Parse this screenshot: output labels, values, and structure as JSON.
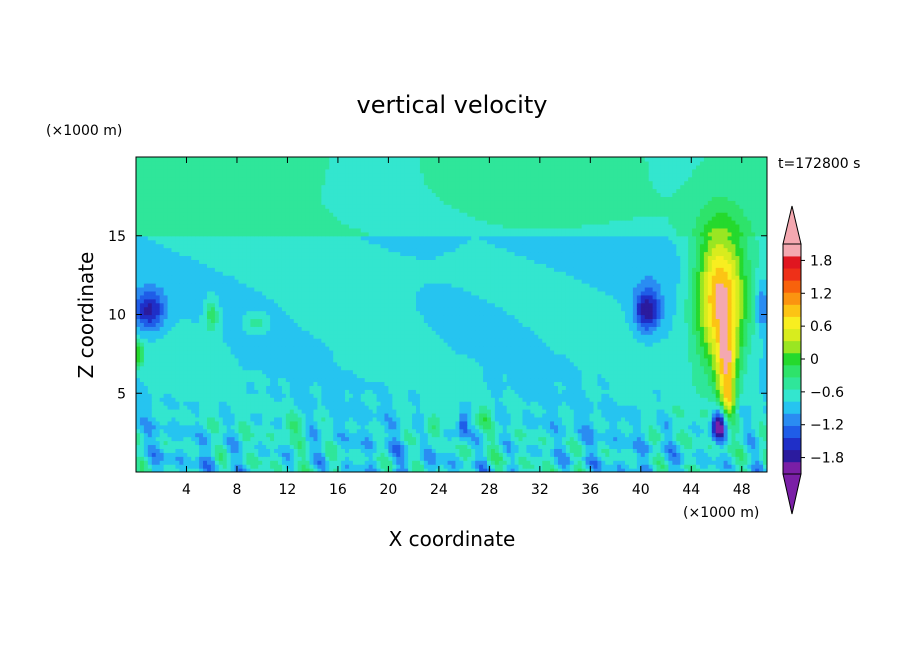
{
  "chart_data": {
    "type": "heatmap",
    "title": "vertical velocity",
    "time_label": "t=172800 s",
    "xlabel": "X coordinate",
    "ylabel": "Z coordinate",
    "x_unit": "(×1000 m)",
    "y_unit": "(×1000 m)",
    "xlim": [
      0,
      50
    ],
    "ylim": [
      0,
      20
    ],
    "x_ticks": [
      4,
      8,
      12,
      16,
      20,
      24,
      28,
      32,
      36,
      40,
      44,
      48
    ],
    "y_ticks": [
      5,
      10,
      15
    ],
    "colorbar": {
      "min": -2.1,
      "max": 2.1,
      "step": 0.3,
      "tick_values": [
        -1.8,
        -1.2,
        -0.6,
        0,
        0.6,
        1.2,
        1.8
      ],
      "tick_labels": [
        "−1.8",
        "−1.2",
        "−0.6",
        "0",
        "0.6",
        "1.2",
        "1.8"
      ],
      "colors": [
        "#7a1fa6",
        "#2b1b9e",
        "#1f2fc8",
        "#1f5de8",
        "#2a8cf2",
        "#26c4f0",
        "#33e6cf",
        "#2fe69a",
        "#2ee36a",
        "#25d92d",
        "#9ae622",
        "#d8ec1e",
        "#f8ee20",
        "#fcc414",
        "#fb9410",
        "#f8620c",
        "#ee3018",
        "#e01620",
        "#f4a8b0"
      ],
      "under_color": "#7a1fa6",
      "over_color": "#f4a8b0"
    },
    "background_value": 0.05,
    "features": [
      {
        "kind": "updraft plume",
        "x": [
          44,
          49
        ],
        "z": [
          4,
          16
        ],
        "w_max": 2.1
      },
      {
        "kind": "downdraft",
        "x": [
          39.5,
          41.5
        ],
        "z": [
          9,
          11.5
        ],
        "w_min": -1.5
      },
      {
        "kind": "downdraft",
        "x": [
          0,
          2.5
        ],
        "z": [
          9,
          11.5
        ],
        "w_min": -1.4
      },
      {
        "kind": "downdraft core",
        "x": [
          45.5,
          47
        ],
        "z": [
          2,
          4
        ],
        "w_min": -2.0
      }
    ]
  }
}
